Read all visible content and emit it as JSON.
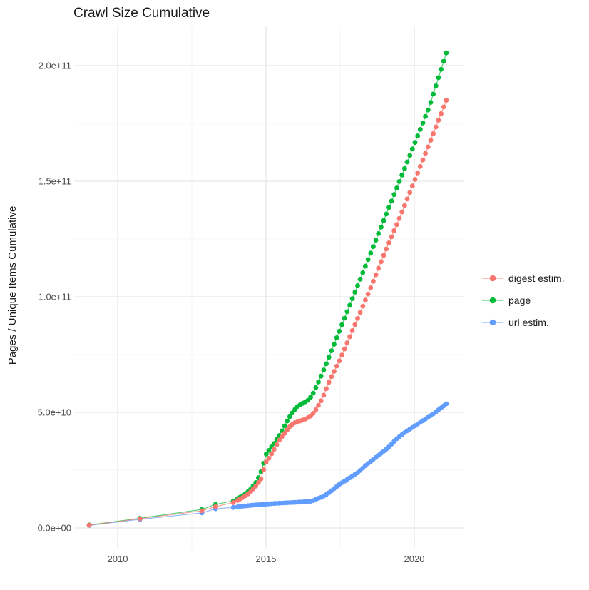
{
  "title": "Crawl Size Cumulative",
  "colors": {
    "digest": "#F8766D",
    "page": "#00BA38",
    "url": "#619CFF",
    "grid_major": "#e6e6e6",
    "grid_minor": "#f3f3f3",
    "tick_text": "#4d4d4d",
    "title_text": "#1a1a1a",
    "background": "#ffffff"
  },
  "legend": {
    "position": "right",
    "items": [
      "digest estim.",
      "page",
      "url estim."
    ]
  },
  "chart_data": {
    "type": "line",
    "title": "Crawl Size Cumulative",
    "xlabel": "",
    "ylabel": "Pages / Unique Items Cumulative",
    "grid": true,
    "legend_position": "right",
    "x_major_ticks": [
      2010,
      2015,
      2020
    ],
    "x_tick_labels": [
      "2010",
      "2015",
      "2020"
    ],
    "x_minor_ticks": [
      2012.5,
      2017.5
    ],
    "y_major_ticks_billions": [
      0,
      50,
      100,
      150,
      200
    ],
    "y_tick_labels": [
      "0.0e+00",
      "5.0e+10",
      "1.0e+11",
      "1.5e+11",
      "2.0e+11"
    ],
    "y_minor_ticks_billions": [
      25,
      75,
      125,
      175
    ],
    "x_range_shown": [
      2008.6,
      2021.7
    ],
    "y_range_shown_billions": [
      0,
      217
    ],
    "first_crawl_year": 2009.04,
    "monthly_points_from": 2014.04,
    "point_interval_years": 0.088,
    "x_end": 2021.08,
    "units": "pages (value arrays are [year, billions])",
    "series": [
      {
        "name": "digest estim.",
        "color": "#F8766D",
        "points_year_billions": [
          [
            2009.04,
            1.2
          ],
          [
            2010.75,
            4.0
          ],
          [
            2012.84,
            7.4
          ],
          [
            2013.3,
            9.2
          ],
          [
            2013.9,
            11.0
          ],
          [
            2014.2,
            13.0
          ],
          [
            2014.45,
            15.2
          ],
          [
            2014.65,
            18.0
          ],
          [
            2014.85,
            21.5
          ],
          [
            2014.97,
            27.8
          ],
          [
            2015.1,
            30.2
          ],
          [
            2015.25,
            33.5
          ],
          [
            2015.45,
            38.0
          ],
          [
            2015.6,
            40.5
          ],
          [
            2015.8,
            43.8
          ],
          [
            2015.95,
            45.4
          ],
          [
            2016.15,
            46.3
          ],
          [
            2016.35,
            47.2
          ],
          [
            2016.55,
            48.8
          ],
          [
            2016.7,
            51.5
          ],
          [
            2016.9,
            56.0
          ],
          [
            2017.15,
            64.0
          ],
          [
            2017.5,
            73.0
          ],
          [
            2018.0,
            88.0
          ],
          [
            2018.5,
            103.0
          ],
          [
            2019.0,
            119.0
          ],
          [
            2019.5,
            134.0
          ],
          [
            2020.0,
            150.0
          ],
          [
            2020.5,
            166.0
          ],
          [
            2021.08,
            185.0
          ]
        ]
      },
      {
        "name": "page",
        "color": "#00BA38",
        "points_year_billions": [
          [
            2009.04,
            1.3
          ],
          [
            2010.75,
            4.2
          ],
          [
            2012.84,
            8.0
          ],
          [
            2013.3,
            10.2
          ],
          [
            2013.9,
            11.7
          ],
          [
            2014.2,
            13.8
          ],
          [
            2014.45,
            16.2
          ],
          [
            2014.65,
            19.5
          ],
          [
            2014.8,
            23.0
          ],
          [
            2014.9,
            27.0
          ],
          [
            2015.0,
            31.8
          ],
          [
            2015.15,
            34.5
          ],
          [
            2015.3,
            37.0
          ],
          [
            2015.45,
            40.0
          ],
          [
            2015.6,
            43.5
          ],
          [
            2015.75,
            47.2
          ],
          [
            2015.9,
            50.0
          ],
          [
            2016.05,
            52.5
          ],
          [
            2016.25,
            54.0
          ],
          [
            2016.45,
            55.5
          ],
          [
            2016.6,
            58.5
          ],
          [
            2016.8,
            64.0
          ],
          [
            2017.0,
            70.0
          ],
          [
            2017.5,
            86.0
          ],
          [
            2018.0,
            102.0
          ],
          [
            2018.5,
            118.0
          ],
          [
            2019.0,
            134.0
          ],
          [
            2019.5,
            150.0
          ],
          [
            2020.0,
            166.0
          ],
          [
            2020.5,
            182.0
          ],
          [
            2021.08,
            205.5
          ]
        ]
      },
      {
        "name": "url estim.",
        "color": "#619CFF",
        "points_year_billions": [
          [
            2009.04,
            1.1
          ],
          [
            2010.75,
            3.7
          ],
          [
            2012.84,
            6.5
          ],
          [
            2013.3,
            8.3
          ],
          [
            2013.9,
            8.9
          ],
          [
            2014.2,
            9.4
          ],
          [
            2014.5,
            9.8
          ],
          [
            2014.9,
            10.2
          ],
          [
            2015.3,
            10.6
          ],
          [
            2015.7,
            10.9
          ],
          [
            2016.0,
            11.1
          ],
          [
            2016.3,
            11.3
          ],
          [
            2016.55,
            11.6
          ],
          [
            2016.7,
            12.5
          ],
          [
            2016.9,
            13.4
          ],
          [
            2017.1,
            15.0
          ],
          [
            2017.5,
            19.1
          ],
          [
            2017.8,
            21.5
          ],
          [
            2018.1,
            24.0
          ],
          [
            2018.4,
            27.5
          ],
          [
            2018.75,
            31.0
          ],
          [
            2019.1,
            34.5
          ],
          [
            2019.4,
            38.5
          ],
          [
            2019.7,
            41.5
          ],
          [
            2020.0,
            44.0
          ],
          [
            2020.3,
            46.5
          ],
          [
            2020.6,
            49.0
          ],
          [
            2021.08,
            53.7
          ]
        ]
      }
    ]
  }
}
